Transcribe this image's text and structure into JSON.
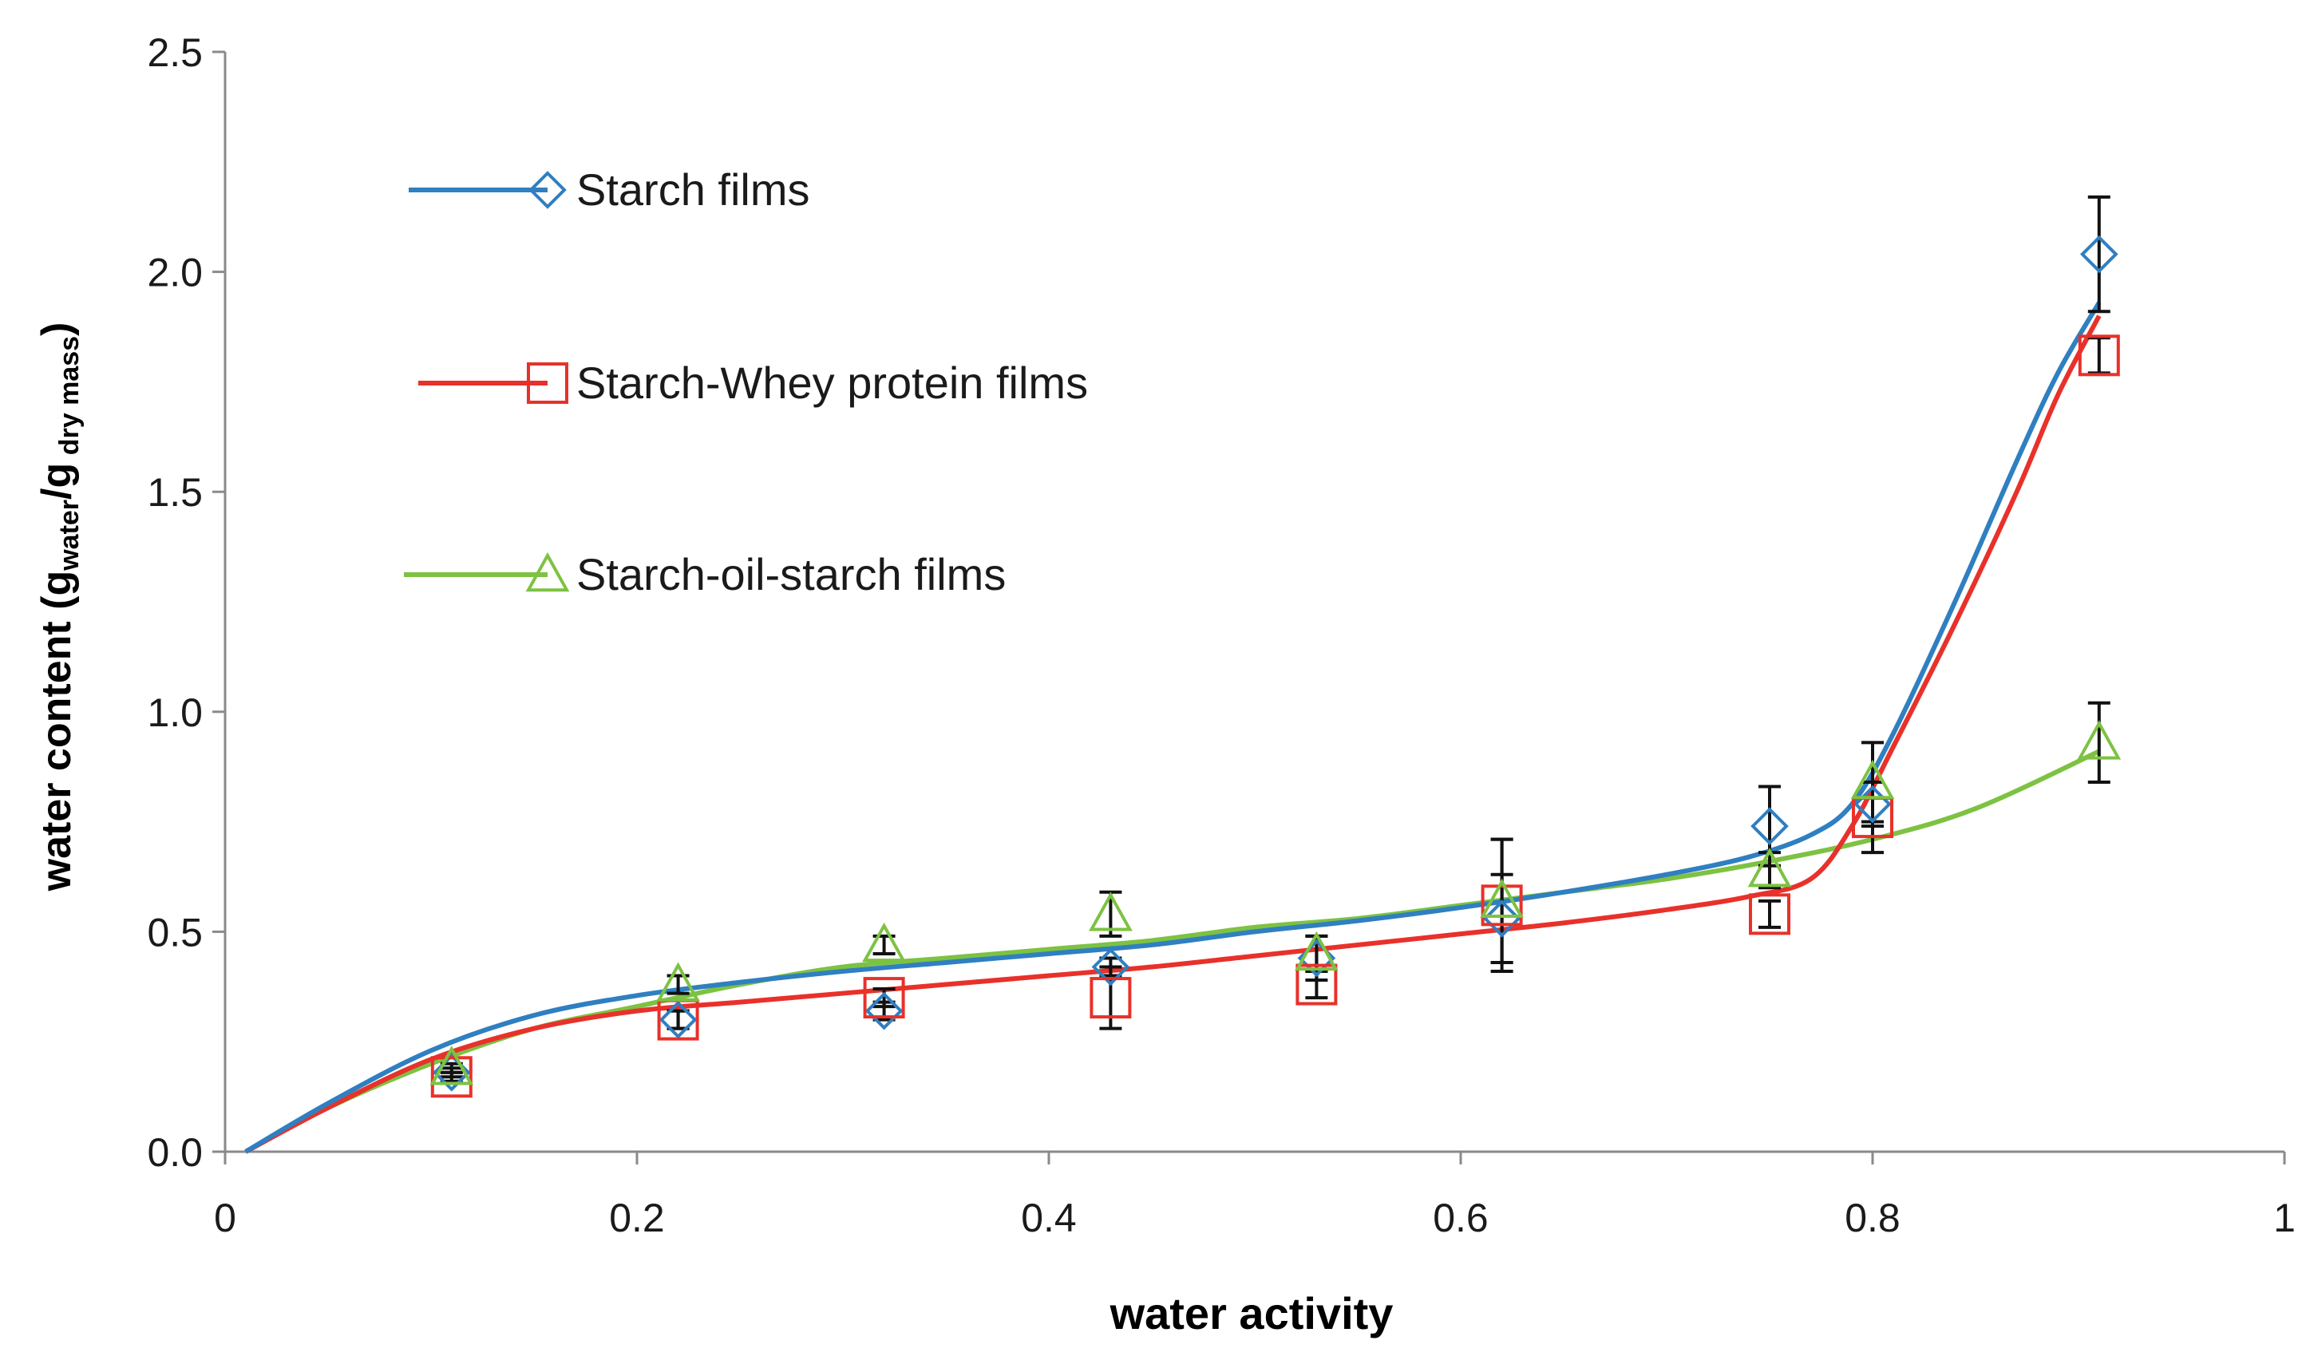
{
  "chart_data": {
    "type": "scatter",
    "title": "",
    "xlabel": "water activity",
    "ylabel": {
      "main": "water content (g",
      "sub1": "water",
      "mid": "/g",
      "sub2": " dry mass",
      "end": ")"
    },
    "xlim": [
      0,
      1
    ],
    "ylim": [
      0,
      2.5
    ],
    "xticks": [
      0,
      0.2,
      0.4,
      0.6,
      0.8,
      1
    ],
    "xtick_labels": [
      "0",
      "0.2",
      "0.4",
      "0.6",
      "0.8",
      "1"
    ],
    "yticks": [
      0,
      0.5,
      1.0,
      1.5,
      2.0,
      2.5
    ],
    "ytick_labels": [
      "0.0",
      "0.5",
      "1.0",
      "1.5",
      "2.0",
      "2.5"
    ],
    "grid": false,
    "legend_position": "top-left",
    "series": [
      {
        "name": "Starch films",
        "color": "#2f7fc1",
        "marker": "diamond",
        "x": [
          0.11,
          0.22,
          0.32,
          0.43,
          0.53,
          0.62,
          0.75,
          0.8,
          0.91
        ],
        "y": [
          0.18,
          0.3,
          0.32,
          0.42,
          0.44,
          0.53,
          0.74,
          0.79,
          2.04
        ],
        "err": [
          0.01,
          0.02,
          0.02,
          0.02,
          0.05,
          0.1,
          0.09,
          0.05,
          0.13
        ],
        "fit_x": [
          0.01,
          0.05,
          0.1,
          0.15,
          0.2,
          0.25,
          0.3,
          0.35,
          0.4,
          0.45,
          0.5,
          0.55,
          0.6,
          0.65,
          0.7,
          0.74,
          0.77,
          0.79,
          0.81,
          0.84,
          0.87,
          0.89,
          0.91
        ],
        "fit_y": [
          0.0,
          0.11,
          0.23,
          0.31,
          0.355,
          0.385,
          0.41,
          0.43,
          0.45,
          0.47,
          0.5,
          0.525,
          0.555,
          0.59,
          0.63,
          0.67,
          0.72,
          0.79,
          0.95,
          1.25,
          1.57,
          1.77,
          1.93
        ]
      },
      {
        "name": "Starch-Whey protein films",
        "color": "#e8312a",
        "marker": "square",
        "x": [
          0.11,
          0.22,
          0.32,
          0.43,
          0.53,
          0.62,
          0.75,
          0.8,
          0.91
        ],
        "y": [
          0.17,
          0.3,
          0.35,
          0.35,
          0.38,
          0.56,
          0.54,
          0.76,
          1.81
        ],
        "err": [
          0.01,
          0.02,
          0.02,
          0.07,
          0.03,
          0.15,
          0.03,
          0.08,
          0.04
        ],
        "fit_x": [
          0.01,
          0.05,
          0.1,
          0.15,
          0.2,
          0.25,
          0.3,
          0.35,
          0.4,
          0.45,
          0.5,
          0.55,
          0.6,
          0.65,
          0.7,
          0.74,
          0.77,
          0.79,
          0.81,
          0.84,
          0.87,
          0.89,
          0.91
        ],
        "fit_y": [
          0.0,
          0.1,
          0.21,
          0.28,
          0.32,
          0.34,
          0.36,
          0.38,
          0.4,
          0.42,
          0.445,
          0.47,
          0.495,
          0.52,
          0.55,
          0.58,
          0.62,
          0.74,
          0.92,
          1.2,
          1.5,
          1.72,
          1.9
        ]
      },
      {
        "name": "Starch-oil-starch films",
        "color": "#7dc242",
        "marker": "triangle",
        "x": [
          0.11,
          0.22,
          0.32,
          0.43,
          0.53,
          0.62,
          0.75,
          0.8,
          0.91
        ],
        "y": [
          0.19,
          0.38,
          0.47,
          0.54,
          0.45,
          0.57,
          0.64,
          0.84,
          0.93
        ],
        "err": [
          0.01,
          0.02,
          0.02,
          0.05,
          0.04,
          0.14,
          0.04,
          0.09,
          0.09
        ],
        "fit_x": [
          0.01,
          0.05,
          0.1,
          0.15,
          0.2,
          0.25,
          0.3,
          0.35,
          0.4,
          0.45,
          0.5,
          0.55,
          0.6,
          0.65,
          0.7,
          0.75,
          0.8,
          0.85,
          0.91
        ],
        "fit_y": [
          0.0,
          0.1,
          0.2,
          0.28,
          0.33,
          0.38,
          0.42,
          0.44,
          0.46,
          0.48,
          0.51,
          0.53,
          0.56,
          0.59,
          0.62,
          0.66,
          0.71,
          0.78,
          0.91
        ]
      }
    ]
  }
}
